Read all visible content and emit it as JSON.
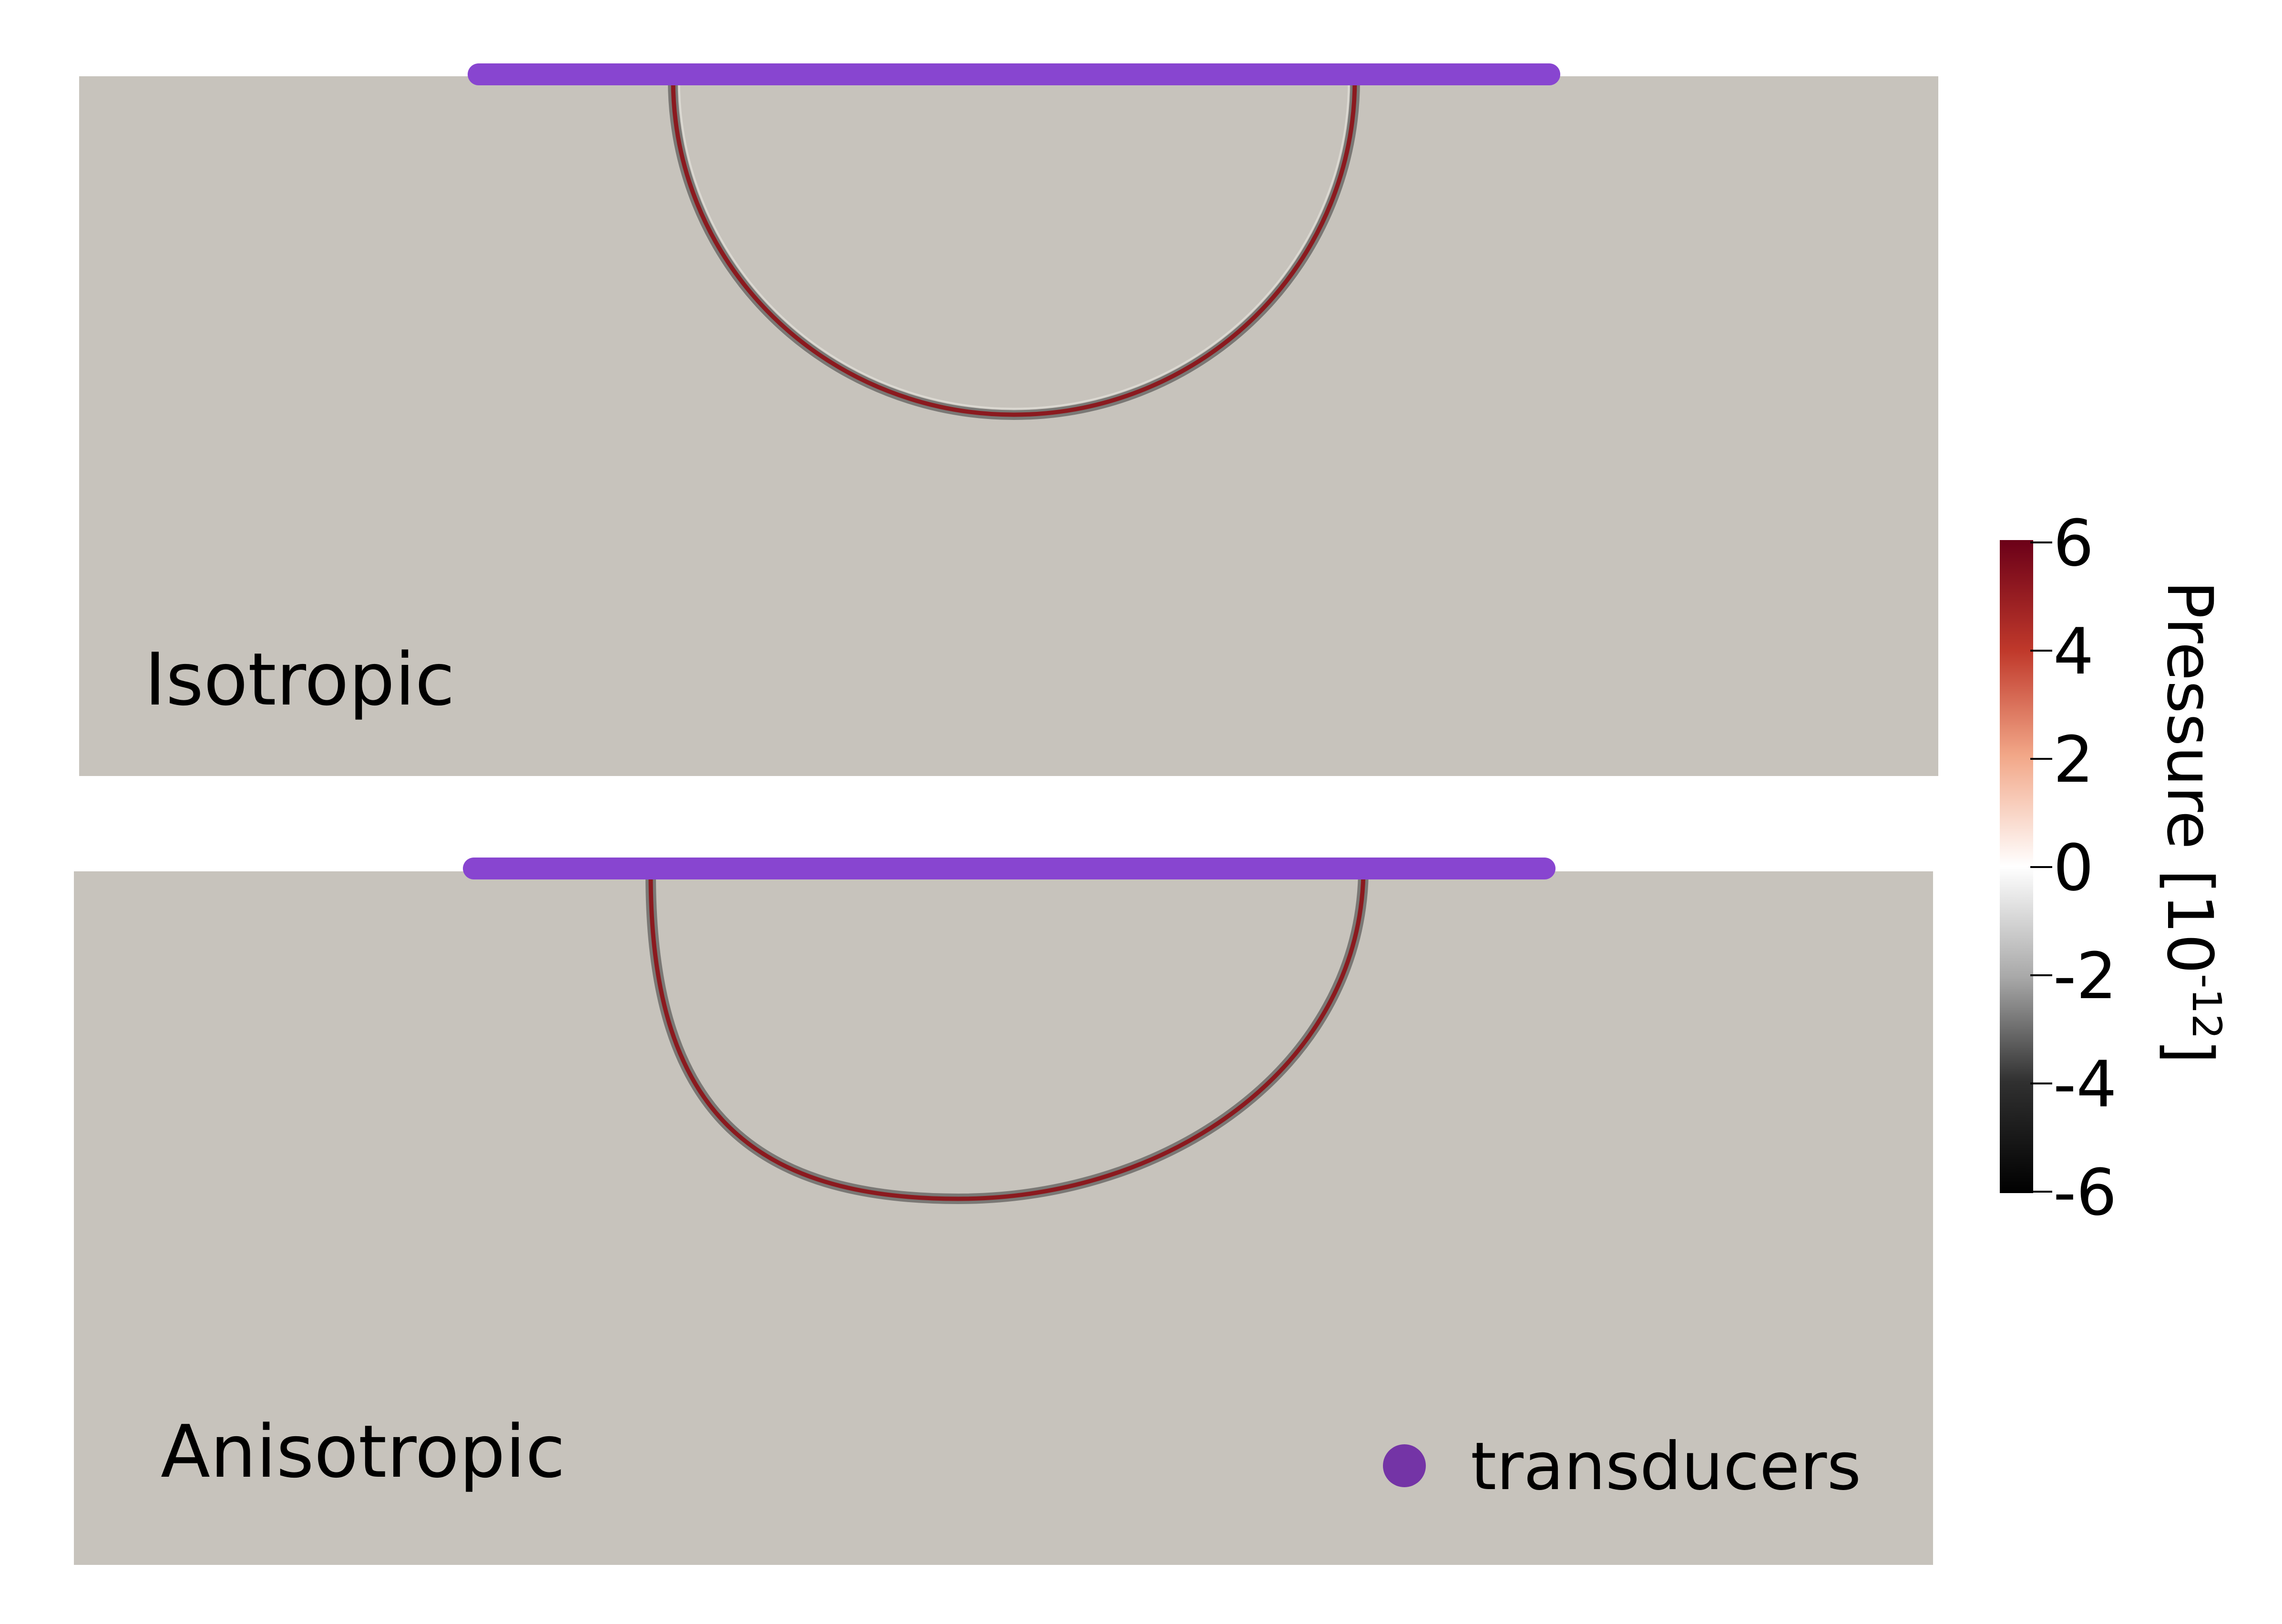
{
  "panels": [
    {
      "label": "Isotropic",
      "wave_shape": "semicircle"
    },
    {
      "label": "Anisotropic",
      "wave_shape": "tilted semi-ellipse"
    }
  ],
  "legend": {
    "label": "transducers",
    "marker_color": "#7434a6"
  },
  "colorbar": {
    "title_main": "Pressure [10",
    "title_sup": "-12",
    "title_close": "]",
    "ticks": [
      "6",
      "4",
      "2",
      "0",
      "-2",
      "-4",
      "-6"
    ],
    "colormap": [
      "#6b0018",
      "#c0392b",
      "#f2a788",
      "#ffffff",
      "#a8a8a8",
      "#303030",
      "#000000"
    ]
  },
  "colors": {
    "medium": "#c7c3bc",
    "transducer": "#8845d0",
    "wavefront": "#8b1a1f",
    "wavefront_shadow": "#3a3a3a"
  }
}
